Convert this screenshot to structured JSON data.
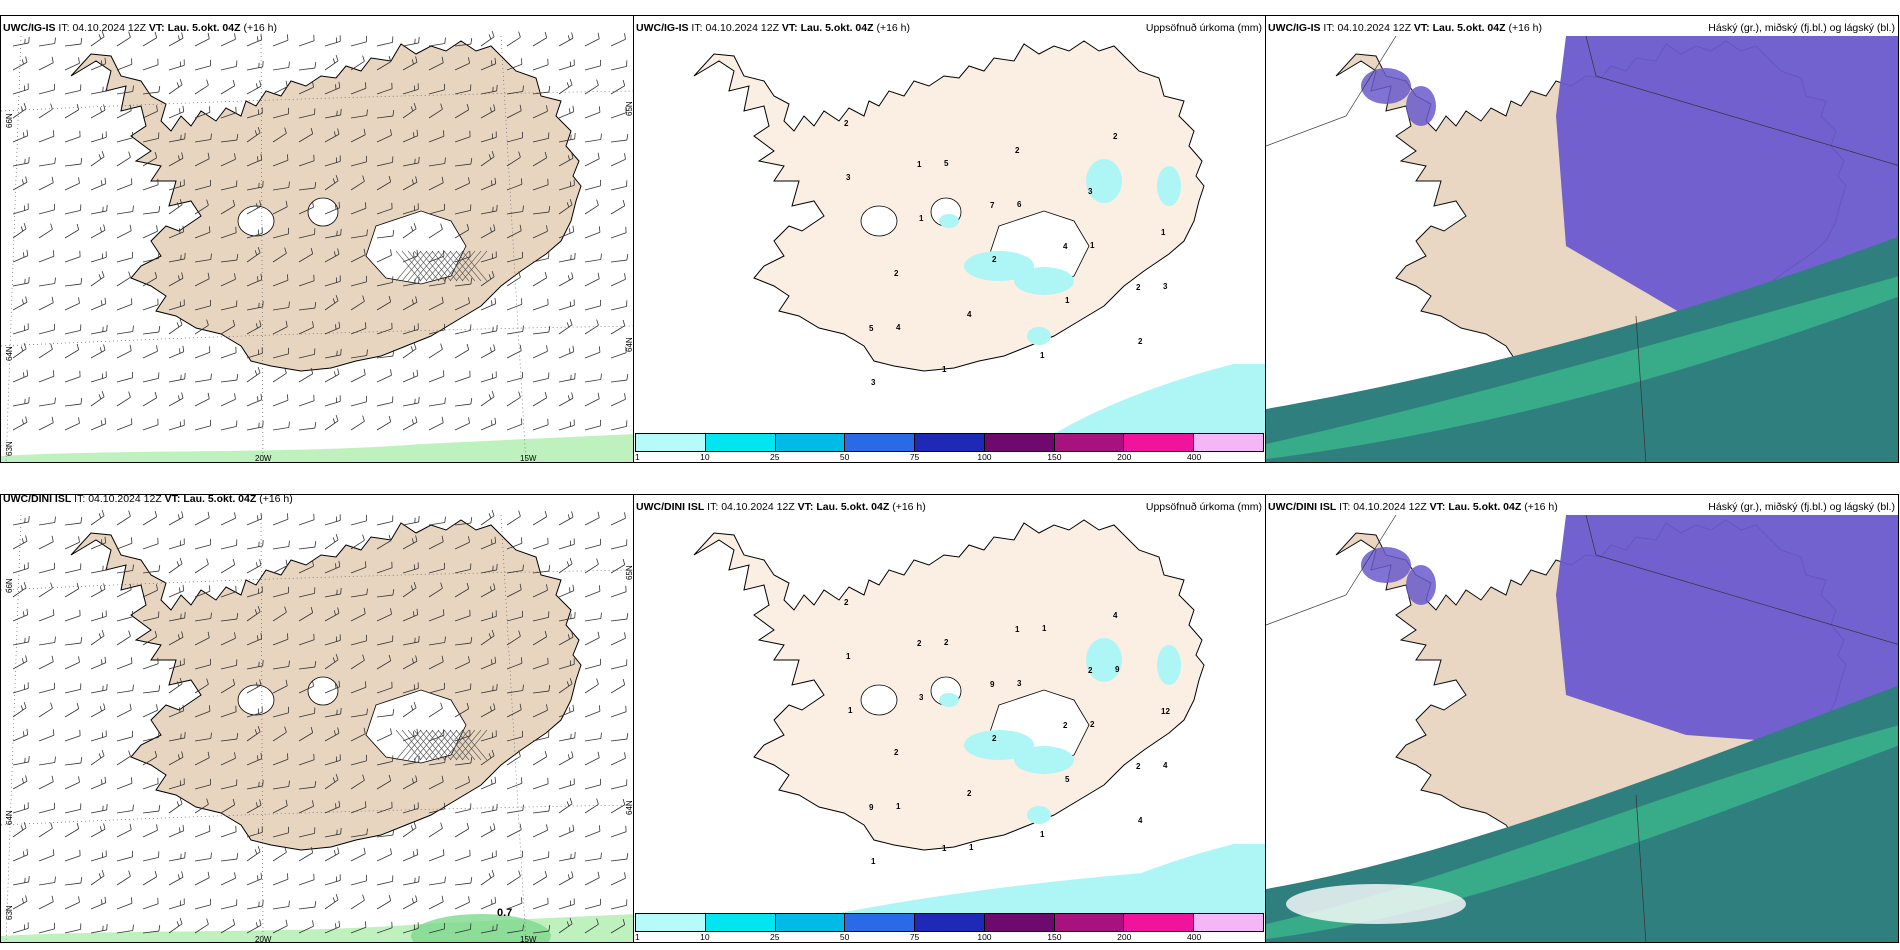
{
  "panels": [
    {
      "id": "wind-top",
      "model": "UWC/IG-IS",
      "it_label": "IT:",
      "init": "04.10.2024 12Z",
      "vt_label": "VT:",
      "valid": "Lau. 5.okt. 04Z",
      "lead": "(+16 h)",
      "right_title": "",
      "lat_labels": [
        "66N",
        "64N",
        "63N"
      ],
      "lat_labels_right": [
        "65N",
        "64N"
      ],
      "lon_labels": [
        "20W",
        "15W"
      ]
    },
    {
      "id": "precip-top",
      "model": "UWC/IG-IS",
      "it_label": "IT:",
      "init": "04.10.2024 12Z",
      "vt_label": "VT:",
      "valid": "Lau. 5.okt. 04Z",
      "lead": "(+16 h)",
      "right_title": "Uppsöfnuð úrkoma (mm)",
      "numbers": [
        "2",
        "1",
        "7",
        "4",
        "2",
        "5",
        "1",
        "2",
        "3",
        "1",
        "2",
        "4",
        "1",
        "2",
        "3",
        "1",
        "2",
        "1",
        "2",
        "3",
        "5",
        "6",
        "1",
        "3",
        "4"
      ]
    },
    {
      "id": "cloud-top",
      "model": "UWC/IG-IS",
      "it_label": "IT:",
      "init": "04.10.2024 12Z",
      "vt_label": "VT:",
      "valid": "Lau. 5.okt. 04Z",
      "lead": "(+16 h)",
      "right_title": "Háský (gr.), miðský (fj.bl.) og lágský (bl.)"
    },
    {
      "id": "wind-bottom",
      "model": "UWC/DINI ISL",
      "it_label": "IT:",
      "init": "04.10.2024 12Z",
      "vt_label": "VT:",
      "valid": "Lau. 5.okt. 04Z",
      "lead": "(+16 h)",
      "right_title": "",
      "lat_labels": [
        "66N",
        "64N",
        "63N"
      ],
      "lat_labels_right": [
        "65N",
        "64N"
      ],
      "lon_labels": [
        "20W",
        "15W"
      ],
      "gust_value": "0.7"
    },
    {
      "id": "precip-bottom",
      "model": "UWC/DINI ISL",
      "it_label": "IT:",
      "init": "04.10.2024 12Z",
      "vt_label": "VT:",
      "valid": "Lau. 5.okt. 04Z",
      "lead": "(+16 h)",
      "right_title": "Uppsöfnuð úrkoma (mm)",
      "numbers": [
        "2",
        "2",
        "9",
        "2",
        "2",
        "9",
        "1",
        "1",
        "2",
        "12",
        "2",
        "2",
        "1",
        "4",
        "1",
        "3",
        "2",
        "5",
        "4",
        "1",
        "2",
        "3",
        "2",
        "4",
        "1",
        "1",
        "1",
        "9",
        "1"
      ]
    },
    {
      "id": "cloud-bottom",
      "model": "UWC/DINI ISL",
      "it_label": "IT:",
      "init": "04.10.2024 12Z",
      "vt_label": "VT:",
      "valid": "Lau. 5.okt. 04Z",
      "lead": "(+16 h)",
      "right_title": "Háský (gr.), miðský (fj.bl.) og lágský (bl.)"
    }
  ],
  "colorbar": {
    "ticks": [
      "1",
      "10",
      "25",
      "50",
      "75",
      "100",
      "150",
      "200",
      "400"
    ],
    "colors": [
      "#b6fafa",
      "#00e6f0",
      "#00bbe6",
      "#2a6ae6",
      "#1e2ab6",
      "#6e0a6e",
      "#a8127e",
      "#f0149c",
      "#f5b6f5"
    ]
  },
  "colors": {
    "land": "#e8d5c0",
    "land_precip": "#fbefe3",
    "precip_light": "#aef5f5",
    "high_cloud": "#6a5acd",
    "mid_cloud": "#2f7f7f",
    "low_cloud_green": "#3fcf90",
    "gust_green": "#b8efb8"
  }
}
